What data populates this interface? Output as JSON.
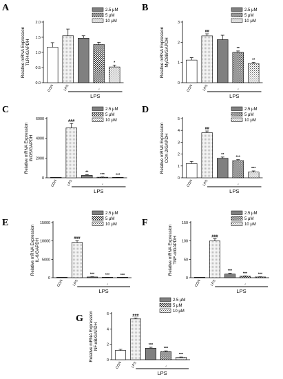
{
  "colors": {
    "con": "#ffffff",
    "lps": "#eeeeee",
    "d25": "#808080",
    "d5": "#e0e0e0",
    "d10": "#d0d0d0",
    "stroke": "#000000"
  },
  "legend": [
    "2.5 μM",
    "5 μM",
    "10 μM"
  ],
  "chart_data": [
    {
      "panel": "A",
      "type": "bar",
      "ylabel_lines": [
        "Relative mRNA Expression",
        "TLR4/GAPDH"
      ],
      "categories": [
        "CON",
        "LPS",
        "",
        "",
        ""
      ],
      "values": [
        1.17,
        1.55,
        1.47,
        1.26,
        0.52
      ],
      "errors": [
        0.15,
        0.22,
        0.08,
        0.07,
        0.06
      ],
      "annotations": [
        "",
        "",
        "",
        "",
        "*"
      ],
      "yticks": [
        "0.0",
        "0.5",
        "1.0",
        "1.5",
        "2.0"
      ],
      "ylim": [
        0,
        2.0
      ],
      "group_label": "LPS",
      "marker_label": "⁁"
    },
    {
      "panel": "B",
      "type": "bar",
      "ylabel_lines": [
        "Relative mRNA Expression",
        "MyD88/GAPDH"
      ],
      "categories": [
        "CON",
        "LPS",
        "",
        "",
        ""
      ],
      "values": [
        1.12,
        2.32,
        2.13,
        1.5,
        0.95
      ],
      "errors": [
        0.12,
        0.1,
        0.22,
        0.07,
        0.05
      ],
      "annotations": [
        "",
        "##",
        "",
        "**",
        "**"
      ],
      "yticks": [
        "0",
        "1",
        "2",
        "3"
      ],
      "ylim": [
        0,
        3
      ],
      "group_label": "LPS",
      "marker_label": "⁁"
    },
    {
      "panel": "C",
      "type": "bar",
      "ylabel_lines": [
        "Relative mRNA Expression",
        "iNOS/GAPDH"
      ],
      "categories": [
        "CON",
        "LPS",
        "",
        "",
        ""
      ],
      "values": [
        1,
        5050,
        250,
        60,
        25
      ],
      "errors": [
        0,
        450,
        60,
        20,
        10
      ],
      "annotations": [
        "",
        "###",
        "**",
        "***",
        "***"
      ],
      "yticks": [
        "0",
        "2000",
        "4000",
        "6000"
      ],
      "ylim": [
        0,
        6000
      ],
      "group_label": "LPS",
      "marker_label": "⁁"
    },
    {
      "panel": "D",
      "type": "bar",
      "ylabel_lines": [
        "Relative mRNA Expression",
        "COX-2/GAPDH"
      ],
      "categories": [
        "CON",
        "LPS",
        "",
        "",
        ""
      ],
      "values": [
        1.2,
        3.8,
        1.65,
        1.45,
        0.48
      ],
      "errors": [
        0.18,
        0.15,
        0.1,
        0.08,
        0.1
      ],
      "annotations": [
        "",
        "##",
        "**",
        "***",
        "***"
      ],
      "yticks": [
        "0",
        "1",
        "2",
        "3",
        "4",
        "5"
      ],
      "ylim": [
        0,
        5
      ],
      "group_label": "LPS",
      "marker_label": "⁁"
    },
    {
      "panel": "E",
      "type": "bar",
      "ylabel_lines": [
        "Relative mRNA Expression",
        "IL-6/GAPDH"
      ],
      "categories": [
        "CON",
        "LPS",
        "",
        "",
        ""
      ],
      "values": [
        1,
        9600,
        200,
        60,
        30
      ],
      "errors": [
        0,
        500,
        60,
        20,
        10
      ],
      "annotations": [
        "",
        "###",
        "***",
        "***",
        "***"
      ],
      "yticks": [
        "0",
        "5000",
        "10000",
        "15000"
      ],
      "ylim": [
        0,
        15000
      ],
      "group_label": "LPS",
      "marker_label": "⁁"
    },
    {
      "panel": "F",
      "type": "bar",
      "ylabel_lines": [
        "Relative mRNA Expression",
        "TNF-α/GAPDH"
      ],
      "categories": [
        "CON",
        "LPS",
        "",
        "",
        ""
      ],
      "values": [
        1,
        100,
        10,
        4,
        2
      ],
      "errors": [
        0,
        6,
        2,
        1,
        0.5
      ],
      "annotations": [
        "",
        "###",
        "***",
        "***",
        "***"
      ],
      "yticks": [
        "0",
        "50",
        "100",
        "150"
      ],
      "ylim": [
        0,
        150
      ],
      "group_label": "LPS",
      "marker_label": "⁁"
    },
    {
      "panel": "G",
      "type": "bar",
      "ylabel_lines": [
        "Relative mRNA Expression",
        "NF-κB/GAPDH"
      ],
      "categories": [
        "CON",
        "LPS",
        "",
        "",
        ""
      ],
      "values": [
        1.2,
        5.3,
        1.5,
        1.05,
        0.3
      ],
      "errors": [
        0.15,
        0.12,
        0.12,
        0.1,
        0.05
      ],
      "annotations": [
        "",
        "###",
        "***",
        "***",
        "***"
      ],
      "yticks": [
        "0",
        "2",
        "4",
        "6"
      ],
      "ylim": [
        0,
        6
      ],
      "group_label": "LPS",
      "marker_label": "⁁"
    }
  ]
}
